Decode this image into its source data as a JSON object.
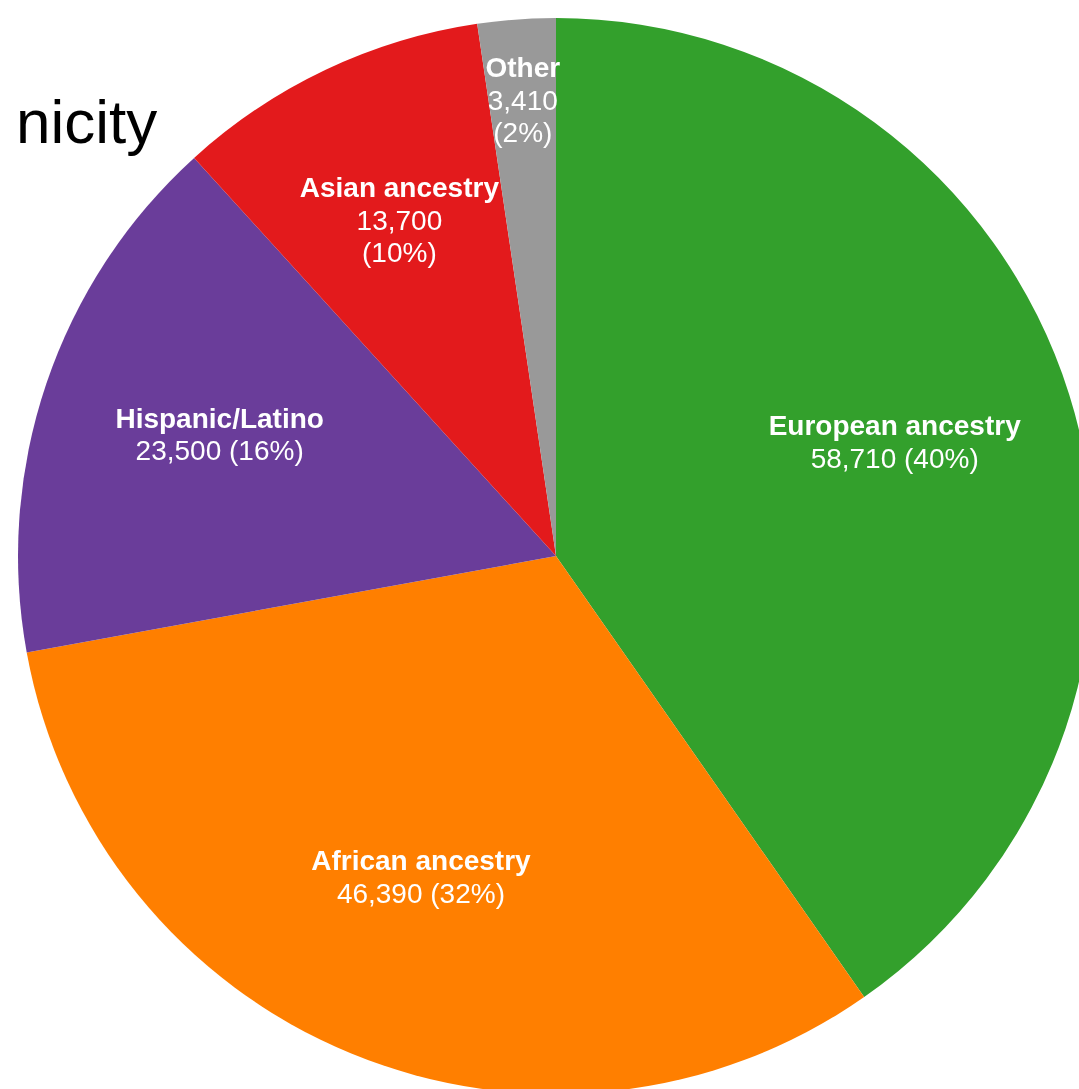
{
  "chart_data": {
    "type": "pie",
    "title": "nicity",
    "categories": [
      "European ancestry",
      "African ancestry",
      "Hispanic/Latino",
      "Asian ancestry",
      "Other"
    ],
    "values": [
      58710,
      46390,
      23500,
      13700,
      3410
    ],
    "colors": [
      "#33a02c",
      "#ff7f00",
      "#6a3d9a",
      "#e31a1c",
      "#999999"
    ],
    "value_labels": [
      "58,710 (40%)",
      "46,390 (32%)",
      "23,500 (16%)",
      "13,700 (10%)",
      "3,410 (2%)"
    ]
  }
}
